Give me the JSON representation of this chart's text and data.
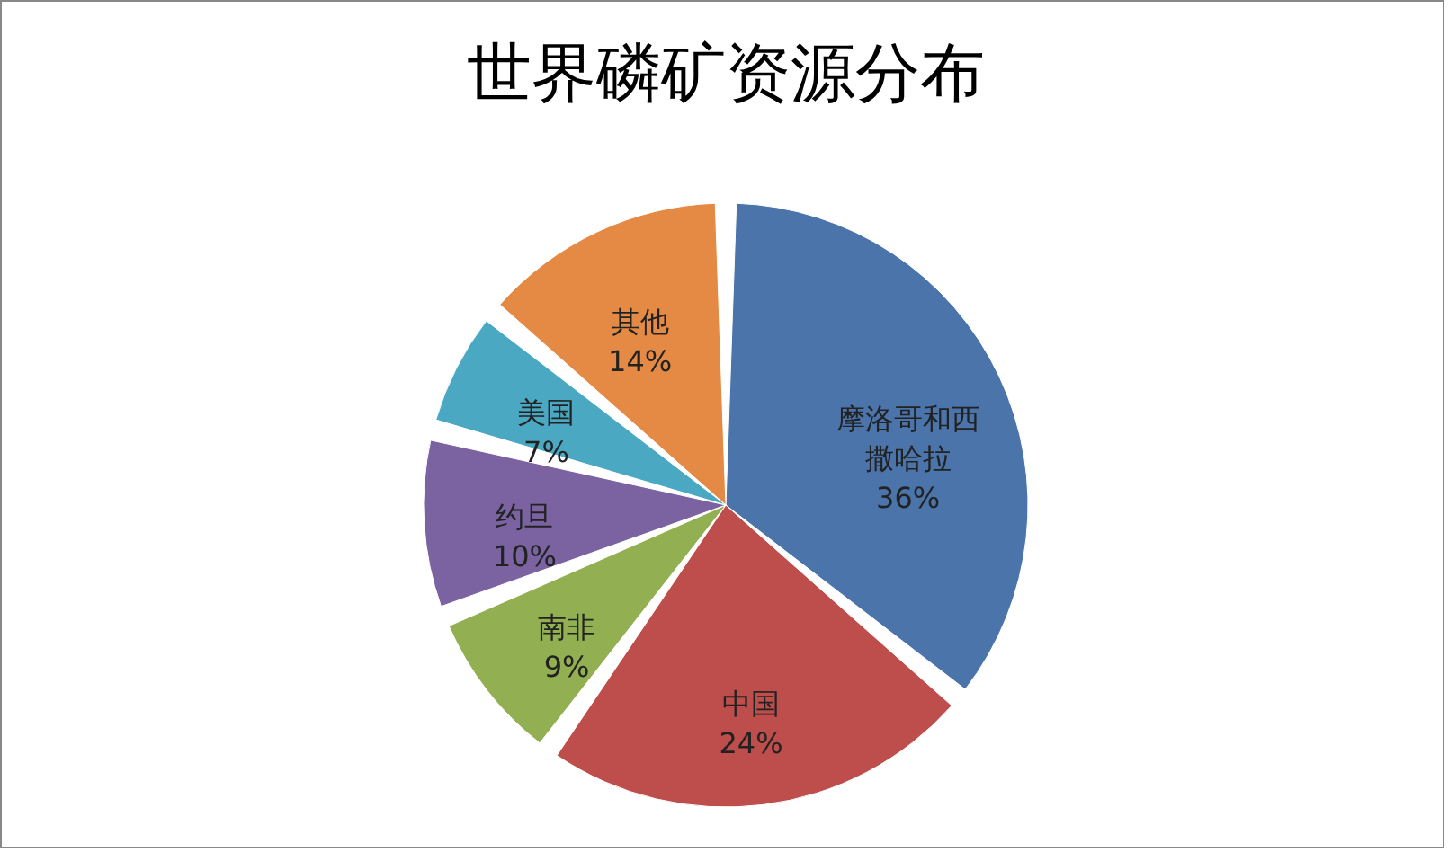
{
  "chart_data": {
    "type": "pie",
    "title": "世界磷矿资源分布",
    "categories": [
      "摩洛哥和西撒哈拉",
      "中国",
      "南非",
      "约旦",
      "美国",
      "其他"
    ],
    "values": [
      36,
      24,
      9,
      10,
      7,
      14
    ],
    "value_labels": [
      "36%",
      "24%",
      "9%",
      "10%",
      "7%",
      "14%"
    ],
    "colors": [
      "#4a74aa",
      "#bd4e4b",
      "#92b052",
      "#7b62a0",
      "#4aa8c2",
      "#e48a45"
    ],
    "legend": false
  }
}
